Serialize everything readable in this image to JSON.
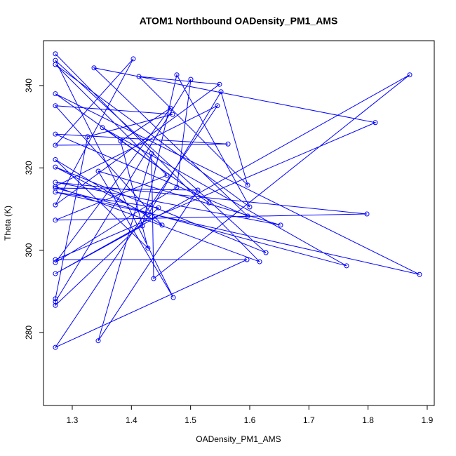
{
  "chart_data": {
    "type": "line",
    "title": "ATOM1 Northbound OADensity_PM1_AMS",
    "x_label": "OADensity_PM1_AMS",
    "y_label": "Theta (K)",
    "color": "#0000ff",
    "markers": true,
    "x": [
      1.2715,
      1.6167,
      1.2715,
      1.5454,
      1.2715,
      1.5953,
      1.2715,
      1.8123,
      1.3368,
      1.5965,
      1.2715,
      1.5633,
      1.2715,
      1.4032,
      1.2715,
      1.549,
      1.4127,
      1.5965,
      1.5514,
      1.4279,
      1.2715,
      1.6274,
      1.2715,
      1.4708,
      1.3439,
      1.6522,
      1.2715,
      1.7981,
      1.2715,
      1.4601,
      1.2715,
      1.6,
      1.4767,
      1.4186,
      1.2715,
      1.8704,
      1.4376,
      1.434,
      1.3439,
      1.5123,
      1.2715,
      1.7637,
      1.351,
      1.5312,
      1.2715,
      1.887,
      1.2715,
      1.4458,
      1.2715,
      1.2715,
      1.3261,
      1.4696,
      1.2715,
      1.4518,
      1.2715,
      1.4279,
      1.3818,
      1.466,
      1.2715,
      1.4767,
      1.5004,
      1.2715
    ],
    "values": [
      347.7,
      297.2,
      315.5,
      335.1,
      276.4,
      297.7,
      297.7,
      331.0,
      344.3,
      308.3,
      328.2,
      325.8,
      325.5,
      346.5,
      311.0,
      340.3,
      342.2,
      315.8,
      338.5,
      308.6,
      320.2,
      299.4,
      346.1,
      288.5,
      319.2,
      306.1,
      316.5,
      308.8,
      307.3,
      318.2,
      345.1,
      310.5,
      342.6,
      305.9,
      294.3,
      342.6,
      293.1,
      323.5,
      278.0,
      314.6,
      315.1,
      296.2,
      329.8,
      311.5,
      338.0,
      294.1,
      314.1,
      310.3,
      286.6,
      288.2,
      327.6,
      333.0,
      335.1,
      306.1,
      322.0,
      300.5,
      326.5,
      334.5,
      297.0,
      315.3,
      341.5,
      287.5
    ],
    "xlim": [
      1.2514,
      1.9119
    ],
    "ylim": [
      262.27,
      350.9
    ],
    "xticks": [
      1.3,
      1.4,
      1.5,
      1.6,
      1.7,
      1.8,
      1.9
    ],
    "yticks": [
      280,
      300,
      320,
      340
    ]
  }
}
